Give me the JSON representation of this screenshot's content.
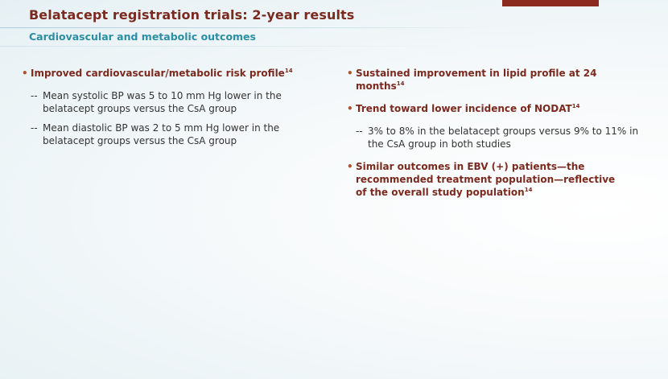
{
  "title": "Belatacept registration trials: 2-year results",
  "subtitle": "Cardiovascular and metabolic outcomes",
  "left": {
    "bullet1": {
      "text": "Improved cardiovascular/metabolic risk profile",
      "ref": "14"
    },
    "sub1": "Mean systolic BP was 5 to 10 mm Hg lower in the belatacept groups versus the CsA group",
    "sub2": "Mean diastolic BP was 2 to 5 mm Hg lower in the belatacept groups versus the CsA group"
  },
  "right": {
    "bullet1": {
      "text": "Sustained improvement in lipid profile at 24 months",
      "ref": "14"
    },
    "bullet2": {
      "text": "Trend toward lower incidence of NODAT",
      "ref": "14"
    },
    "sub1": "3% to 8% in the belatacept groups versus 9% to 11% in the CsA group in both studies",
    "bullet3": {
      "text": "Similar outcomes in EBV (+) patients—the recommended treatment population—reflective of the overall study population",
      "ref": "14"
    }
  },
  "bullet_glyph": "•",
  "dash_glyph": "--",
  "colors": {
    "title": "#7a2a1e",
    "subtitle": "#2b8fa3",
    "accent_bar": "#8b2a1e",
    "body": "#333333"
  }
}
